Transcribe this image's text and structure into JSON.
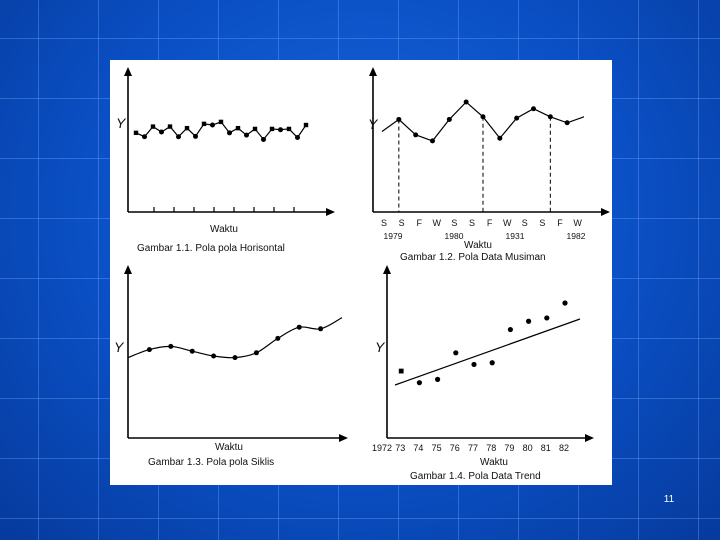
{
  "slide": {
    "page_number": "11"
  },
  "panels": [
    {
      "id": "horizontal",
      "y_label": "Y",
      "x_label": "Waktu",
      "caption": "Gambar 1.1. Pola pola Horisontal",
      "values": [
        0.62,
        0.52,
        0.78,
        0.64,
        0.78,
        0.52,
        0.74,
        0.53,
        0.85,
        0.82,
        0.9,
        0.62,
        0.74,
        0.56,
        0.72,
        0.45,
        0.72,
        0.7,
        0.72,
        0.5,
        0.82
      ]
    },
    {
      "id": "seasonal",
      "y_label": "Y",
      "x_label": "Waktu",
      "caption": "Gambar 1.2. Pola Data Musiman",
      "season_ticks": [
        "S",
        "S",
        "F",
        "W",
        "S",
        "S",
        "F",
        "W",
        "S",
        "S",
        "F",
        "W"
      ],
      "year_ticks": [
        "1979",
        "1980",
        "1931",
        "1982"
      ],
      "values": [
        0.5,
        0.68,
        0.45,
        0.36,
        0.68,
        0.94,
        0.72,
        0.4,
        0.7,
        0.84,
        0.72,
        0.63,
        0.72
      ]
    },
    {
      "id": "cyclical",
      "y_label": "Y",
      "x_label": "Waktu",
      "caption": "Gambar 1.3. Pola pola Siklis",
      "values": [
        0.48,
        0.58,
        0.62,
        0.56,
        0.5,
        0.48,
        0.54,
        0.72,
        0.86,
        0.84,
        0.98
      ]
    },
    {
      "id": "trend",
      "y_label": "Y",
      "x_label": "Waktu",
      "caption": "Gambar 1.4. Pola Data Trend",
      "x_ticks": [
        "1972",
        "73",
        "74",
        "75",
        "76",
        "77",
        "78",
        "79",
        "80",
        "81",
        "82"
      ],
      "values": [
        0.18,
        0.04,
        0.08,
        0.4,
        0.26,
        0.28,
        0.68,
        0.78,
        0.82,
        1.0
      ]
    }
  ]
}
